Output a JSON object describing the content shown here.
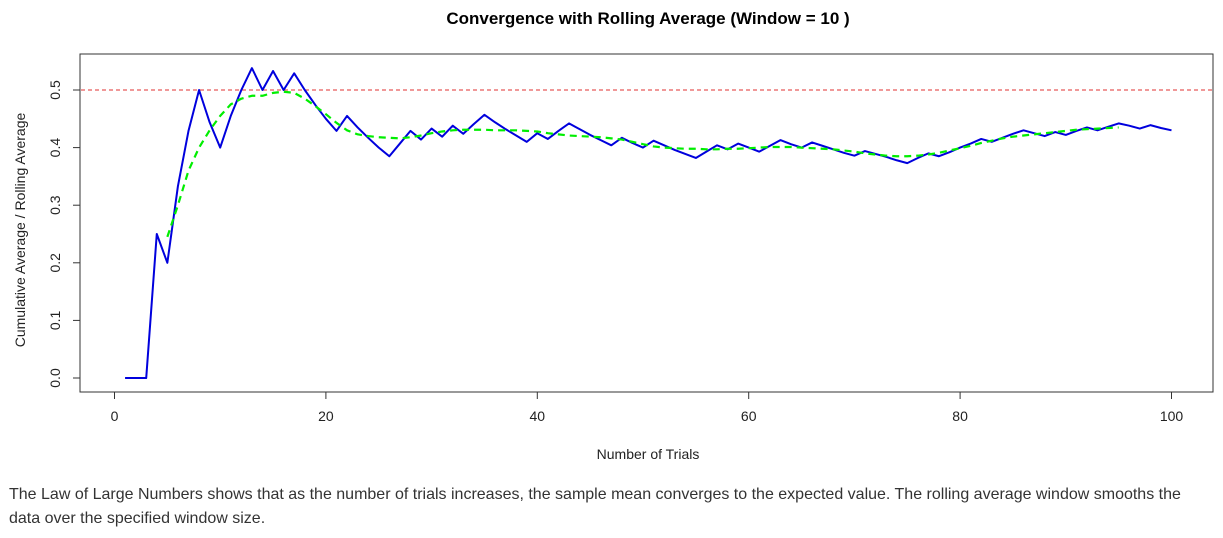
{
  "chart_data": {
    "type": "line",
    "title": "Convergence with Rolling Average (Window = 10 )",
    "xlabel": "Number of Trials",
    "ylabel": "Cumulative Average / Rolling Average",
    "xlim": [
      0,
      100
    ],
    "ylim": [
      0,
      0.5
    ],
    "x_ticks": [
      0,
      20,
      40,
      60,
      80,
      100
    ],
    "y_ticks": [
      0.0,
      0.1,
      0.2,
      0.3,
      0.4,
      0.5
    ],
    "x_tick_labels": [
      "0",
      "20",
      "40",
      "60",
      "80",
      "100"
    ],
    "y_tick_labels": [
      "0.0",
      "0.1",
      "0.2",
      "0.3",
      "0.4",
      "0.5"
    ],
    "reference_line": {
      "y": 0.5,
      "color": "#e03030",
      "style": "dashed"
    },
    "grid": false,
    "series": [
      {
        "role": "cumulative",
        "color": "#0000dd",
        "style": "solid",
        "x": [
          1,
          2,
          3,
          4,
          5,
          6,
          7,
          8,
          9,
          10,
          11,
          12,
          13,
          14,
          15,
          16,
          17,
          18,
          19,
          20,
          21,
          22,
          23,
          24,
          25,
          26,
          27,
          28,
          29,
          30,
          31,
          32,
          33,
          34,
          35,
          36,
          37,
          38,
          39,
          40,
          41,
          42,
          43,
          44,
          45,
          46,
          47,
          48,
          49,
          50,
          51,
          52,
          53,
          54,
          55,
          56,
          57,
          58,
          59,
          60,
          61,
          62,
          63,
          64,
          65,
          66,
          67,
          68,
          69,
          70,
          71,
          72,
          73,
          74,
          75,
          76,
          77,
          78,
          79,
          80,
          81,
          82,
          83,
          84,
          85,
          86,
          87,
          88,
          89,
          90,
          91,
          92,
          93,
          94,
          95,
          96,
          97,
          98,
          99,
          100
        ],
        "values": [
          0,
          0,
          0,
          0.25,
          0.2,
          0.333,
          0.429,
          0.5,
          0.444,
          0.4,
          0.455,
          0.5,
          0.538,
          0.5,
          0.533,
          0.5,
          0.529,
          0.5,
          0.474,
          0.45,
          0.429,
          0.455,
          0.435,
          0.417,
          0.4,
          0.385,
          0.407,
          0.429,
          0.414,
          0.433,
          0.419,
          0.438,
          0.424,
          0.441,
          0.457,
          0.444,
          0.432,
          0.421,
          0.41,
          0.425,
          0.415,
          0.429,
          0.442,
          0.432,
          0.422,
          0.413,
          0.404,
          0.417,
          0.408,
          0.4,
          0.412,
          0.404,
          0.396,
          0.389,
          0.382,
          0.393,
          0.404,
          0.397,
          0.407,
          0.4,
          0.393,
          0.403,
          0.413,
          0.406,
          0.4,
          0.409,
          0.403,
          0.397,
          0.391,
          0.386,
          0.394,
          0.389,
          0.384,
          0.378,
          0.373,
          0.382,
          0.39,
          0.385,
          0.392,
          0.4,
          0.407,
          0.415,
          0.41,
          0.417,
          0.424,
          0.43,
          0.425,
          0.42,
          0.427,
          0.422,
          0.429,
          0.435,
          0.43,
          0.436,
          0.442,
          0.438,
          0.433,
          0.439,
          0.434,
          0.43
        ]
      },
      {
        "role": "rolling",
        "color": "#00ee00",
        "style": "dashed",
        "x": [
          5,
          6,
          7,
          8,
          9,
          10,
          11,
          12,
          13,
          14,
          15,
          16,
          17,
          18,
          19,
          20,
          21,
          22,
          23,
          24,
          25,
          26,
          27,
          28,
          29,
          30,
          31,
          32,
          33,
          34,
          35,
          36,
          37,
          38,
          39,
          40,
          41,
          42,
          43,
          44,
          45,
          46,
          47,
          48,
          49,
          50,
          51,
          52,
          53,
          54,
          55,
          56,
          57,
          58,
          59,
          60,
          61,
          62,
          63,
          64,
          65,
          66,
          67,
          68,
          69,
          70,
          71,
          72,
          73,
          74,
          75,
          76,
          77,
          78,
          79,
          80,
          81,
          82,
          83,
          84,
          85,
          86,
          87,
          88,
          89,
          90,
          91,
          92,
          93,
          94,
          95
        ],
        "values": [
          0.245,
          0.3,
          0.36,
          0.4,
          0.43,
          0.455,
          0.475,
          0.485,
          0.49,
          0.49,
          0.495,
          0.497,
          0.495,
          0.485,
          0.472,
          0.458,
          0.443,
          0.43,
          0.423,
          0.42,
          0.418,
          0.417,
          0.416,
          0.418,
          0.421,
          0.425,
          0.428,
          0.43,
          0.431,
          0.431,
          0.431,
          0.43,
          0.43,
          0.43,
          0.429,
          0.428,
          0.425,
          0.423,
          0.421,
          0.42,
          0.419,
          0.418,
          0.416,
          0.414,
          0.41,
          0.406,
          0.402,
          0.4,
          0.399,
          0.398,
          0.398,
          0.397,
          0.397,
          0.398,
          0.398,
          0.399,
          0.4,
          0.401,
          0.401,
          0.401,
          0.4,
          0.399,
          0.398,
          0.397,
          0.395,
          0.393,
          0.39,
          0.388,
          0.386,
          0.385,
          0.385,
          0.386,
          0.388,
          0.391,
          0.395,
          0.399,
          0.403,
          0.408,
          0.412,
          0.416,
          0.419,
          0.421,
          0.423,
          0.425,
          0.427,
          0.429,
          0.431,
          0.432,
          0.433,
          0.434,
          0.435
        ]
      }
    ]
  },
  "caption": "The Law of Large Numbers shows that as the number of trials increases, the sample mean converges to the expected value. The rolling average window smooths the data over the specified window size."
}
